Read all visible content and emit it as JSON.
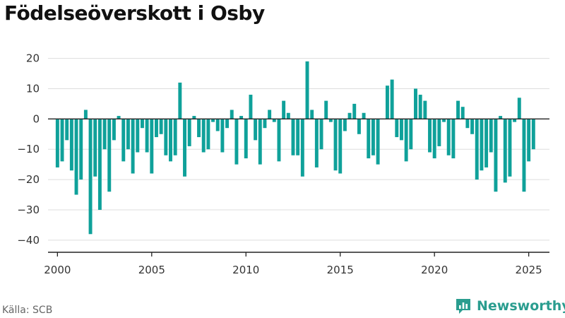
{
  "title": "Födelseöverskott i Osby",
  "source": "Källa: SCB",
  "brand": {
    "name": "Newsworthy",
    "icon": "newsworthy-logo-icon"
  },
  "colors": {
    "bar": "#0fa19a",
    "grid": "#dddddd",
    "zero_line": "#222222",
    "axis": "#222222",
    "brand": "#2a9d8f"
  },
  "chart_data": {
    "type": "bar",
    "title": "Födelseöverskott i Osby",
    "xlabel": "",
    "ylabel": "",
    "ylim": [
      -44,
      22
    ],
    "xlim": [
      1999.5,
      2026.1
    ],
    "yticks": [
      20,
      10,
      0,
      -10,
      -20,
      -30,
      -40
    ],
    "xticks": [
      2000,
      2005,
      2010,
      2015,
      2020,
      2025
    ],
    "grid": true,
    "legend": "none",
    "series": [
      {
        "x": [
          2000.0,
          2000.25,
          2000.5,
          2000.75,
          2001.0,
          2001.25,
          2001.5,
          2001.75,
          2002.0,
          2002.25,
          2002.5,
          2002.75,
          2003.0,
          2003.25,
          2003.5,
          2003.75,
          2004.0,
          2004.25,
          2004.5,
          2004.75,
          2005.0,
          2005.25,
          2005.5,
          2005.75,
          2006.0,
          2006.25,
          2006.5,
          2006.75,
          2007.0,
          2007.25,
          2007.5,
          2007.75,
          2008.0,
          2008.25,
          2008.5,
          2008.75,
          2009.0,
          2009.25,
          2009.5,
          2009.75,
          2010.0,
          2010.25,
          2010.5,
          2010.75,
          2011.0,
          2011.25,
          2011.5,
          2011.75,
          2012.0,
          2012.25,
          2012.5,
          2012.75,
          2013.0,
          2013.25,
          2013.5,
          2013.75,
          2014.0,
          2014.25,
          2014.5,
          2014.75,
          2015.0,
          2015.25,
          2015.5,
          2015.75,
          2016.0,
          2016.25,
          2016.5,
          2016.75,
          2017.0,
          2017.25,
          2017.5,
          2017.75,
          2018.0,
          2018.25,
          2018.5,
          2018.75,
          2019.0,
          2019.25,
          2019.5,
          2019.75,
          2020.0,
          2020.25,
          2020.5,
          2020.75,
          2021.0,
          2021.25,
          2021.5,
          2021.75,
          2022.0,
          2022.25,
          2022.5,
          2022.75,
          2023.0,
          2023.25,
          2023.5,
          2023.75,
          2024.0,
          2024.25,
          2024.5,
          2024.75,
          2025.0,
          2025.25,
          2025.5
        ],
        "values": [
          -16,
          -14,
          -7,
          -17,
          -25,
          -20,
          3,
          -38,
          -19,
          -30,
          -10,
          -24,
          -7,
          1,
          -14,
          -10,
          -18,
          -11,
          -3,
          -11,
          -18,
          -6,
          -5,
          -12,
          -14,
          -12,
          12,
          -19,
          -9,
          1,
          -6,
          -11,
          -10,
          -1,
          -4,
          -11,
          -3,
          3,
          -15,
          1,
          -13,
          8,
          -7,
          -15,
          -3,
          3,
          -1,
          -14,
          6,
          2,
          -12,
          -12,
          -19,
          19,
          3,
          -16,
          -10,
          6,
          -1,
          -17,
          -18,
          -4,
          2,
          5,
          -5,
          2,
          -13,
          -12,
          -15,
          0,
          11,
          13,
          -6,
          -7,
          -14,
          -10,
          10,
          8,
          6,
          -11,
          -13,
          -9,
          -1,
          -12,
          -13,
          6,
          4,
          -3,
          -5,
          -20,
          -17,
          -16,
          -11,
          -24,
          1,
          -21,
          -19,
          -1,
          7,
          -24,
          -14,
          -10,
          0
        ]
      }
    ]
  }
}
